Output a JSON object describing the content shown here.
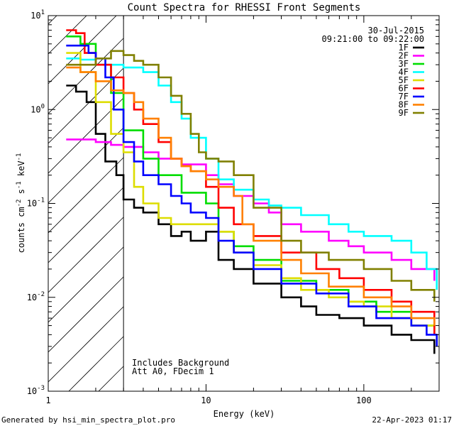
{
  "chart_data": {
    "type": "line",
    "title": "Count Spectra for RHESSI Front Segments",
    "xlabel": "Energy (keV)",
    "ylabel": {
      "base": "counts cm",
      "exp1": "-2",
      "mid1": " s",
      "exp2": "-1",
      "mid2": " keV",
      "exp3": "-1"
    },
    "x_scale": "log",
    "y_scale": "log",
    "xlim": [
      1.0,
      300
    ],
    "ylim": [
      0.001,
      10
    ],
    "x_ticks": [
      {
        "value": 1,
        "label": "1"
      },
      {
        "value": 10,
        "label": "10"
      },
      {
        "value": 100,
        "label": "100"
      }
    ],
    "y_ticks": [
      {
        "value": 0.001,
        "base": "10",
        "exp": "-3"
      },
      {
        "value": 0.01,
        "base": "10",
        "exp": "-2"
      },
      {
        "value": 0.1,
        "base": "10",
        "exp": "-1"
      },
      {
        "value": 1,
        "base": "10",
        "exp": "0"
      },
      {
        "value": 10,
        "base": "10",
        "exp": "1"
      }
    ],
    "date": "30-Jul-2015",
    "time_range": "09:21:00 to 09:22:00",
    "annotations": [
      "Includes Background",
      "Att A0, FDecim 1"
    ],
    "attenuator_edge_kev": 3.0,
    "series": [
      {
        "name": "1F",
        "color": "#000000",
        "points": [
          [
            1.3,
            1.8
          ],
          [
            1.5,
            1.55
          ],
          [
            1.75,
            1.2
          ],
          [
            2.0,
            0.55
          ],
          [
            2.3,
            0.28
          ],
          [
            2.7,
            0.2
          ],
          [
            3.0,
            0.11
          ],
          [
            3.5,
            0.09
          ],
          [
            4.0,
            0.08
          ],
          [
            5.0,
            0.06
          ],
          [
            6.0,
            0.045
          ],
          [
            7.0,
            0.05
          ],
          [
            8.0,
            0.04
          ],
          [
            10.0,
            0.05
          ],
          [
            12.0,
            0.025
          ],
          [
            15.0,
            0.02
          ],
          [
            20.0,
            0.014
          ],
          [
            30.0,
            0.01
          ],
          [
            40.0,
            0.008
          ],
          [
            50.0,
            0.0065
          ],
          [
            70.0,
            0.006
          ],
          [
            100.0,
            0.005
          ],
          [
            150.0,
            0.004
          ],
          [
            200.0,
            0.0035
          ],
          [
            280.0,
            0.0025
          ]
        ]
      },
      {
        "name": "2F",
        "color": "#ff00ff",
        "points": [
          [
            1.3,
            0.48
          ],
          [
            2.0,
            0.45
          ],
          [
            2.5,
            0.42
          ],
          [
            3.0,
            0.4
          ],
          [
            4.0,
            0.35
          ],
          [
            5.0,
            0.3
          ],
          [
            7.0,
            0.26
          ],
          [
            10.0,
            0.2
          ],
          [
            12.0,
            0.16
          ],
          [
            15.0,
            0.12
          ],
          [
            20.0,
            0.1
          ],
          [
            25.0,
            0.08
          ],
          [
            30.0,
            0.06
          ],
          [
            40.0,
            0.05
          ],
          [
            60.0,
            0.04
          ],
          [
            80.0,
            0.035
          ],
          [
            100.0,
            0.03
          ],
          [
            150.0,
            0.025
          ],
          [
            200.0,
            0.02
          ],
          [
            280.0,
            0.015
          ]
        ]
      },
      {
        "name": "3F",
        "color": "#00dd00",
        "points": [
          [
            1.3,
            6.0
          ],
          [
            1.6,
            5.0
          ],
          [
            2.0,
            3.0
          ],
          [
            2.5,
            1.5
          ],
          [
            3.0,
            0.6
          ],
          [
            4.0,
            0.3
          ],
          [
            5.0,
            0.2
          ],
          [
            7.0,
            0.13
          ],
          [
            10.0,
            0.1
          ],
          [
            12.0,
            0.05
          ],
          [
            15.0,
            0.035
          ],
          [
            20.0,
            0.025
          ],
          [
            30.0,
            0.015
          ],
          [
            50.0,
            0.012
          ],
          [
            80.0,
            0.009
          ],
          [
            120.0,
            0.007
          ],
          [
            200.0,
            0.005
          ],
          [
            280.0,
            0.004
          ]
        ]
      },
      {
        "name": "4F",
        "color": "#00ffff",
        "points": [
          [
            1.3,
            3.5
          ],
          [
            1.6,
            3.4
          ],
          [
            2.0,
            3.0
          ],
          [
            3.0,
            2.8
          ],
          [
            4.0,
            2.5
          ],
          [
            5.0,
            1.8
          ],
          [
            6.0,
            1.2
          ],
          [
            7.0,
            0.8
          ],
          [
            8.0,
            0.5
          ],
          [
            10.0,
            0.3
          ],
          [
            12.0,
            0.18
          ],
          [
            15.0,
            0.14
          ],
          [
            20.0,
            0.11
          ],
          [
            25.0,
            0.095
          ],
          [
            30.0,
            0.09
          ],
          [
            40.0,
            0.075
          ],
          [
            60.0,
            0.06
          ],
          [
            80.0,
            0.05
          ],
          [
            100.0,
            0.045
          ],
          [
            150.0,
            0.04
          ],
          [
            200.0,
            0.03
          ],
          [
            250.0,
            0.02
          ],
          [
            290.0,
            0.012
          ]
        ]
      },
      {
        "name": "5F",
        "color": "#dddd00",
        "points": [
          [
            1.3,
            4.0
          ],
          [
            1.6,
            2.5
          ],
          [
            2.0,
            1.2
          ],
          [
            2.5,
            0.55
          ],
          [
            3.0,
            0.35
          ],
          [
            3.5,
            0.15
          ],
          [
            4.0,
            0.1
          ],
          [
            5.0,
            0.07
          ],
          [
            6.0,
            0.06
          ],
          [
            8.0,
            0.06
          ],
          [
            10.0,
            0.06
          ],
          [
            12.0,
            0.05
          ],
          [
            15.0,
            0.03
          ],
          [
            20.0,
            0.022
          ],
          [
            30.0,
            0.016
          ],
          [
            40.0,
            0.012
          ],
          [
            60.0,
            0.01
          ],
          [
            80.0,
            0.009
          ],
          [
            100.0,
            0.008
          ],
          [
            150.0,
            0.006
          ],
          [
            200.0,
            0.005
          ],
          [
            280.0,
            0.004
          ]
        ]
      },
      {
        "name": "6F",
        "color": "#ff0000",
        "points": [
          [
            1.3,
            7.0
          ],
          [
            1.5,
            6.5
          ],
          [
            1.7,
            4.0
          ],
          [
            2.0,
            3.0
          ],
          [
            2.5,
            2.2
          ],
          [
            3.0,
            1.5
          ],
          [
            3.5,
            1.0
          ],
          [
            4.0,
            0.7
          ],
          [
            5.0,
            0.45
          ],
          [
            6.0,
            0.3
          ],
          [
            7.0,
            0.25
          ],
          [
            8.0,
            0.22
          ],
          [
            10.0,
            0.15
          ],
          [
            12.0,
            0.09
          ],
          [
            15.0,
            0.06
          ],
          [
            20.0,
            0.045
          ],
          [
            30.0,
            0.03
          ],
          [
            50.0,
            0.02
          ],
          [
            70.0,
            0.016
          ],
          [
            100.0,
            0.012
          ],
          [
            150.0,
            0.009
          ],
          [
            200.0,
            0.007
          ],
          [
            280.0,
            0.004
          ]
        ]
      },
      {
        "name": "7F",
        "color": "#0000ff",
        "points": [
          [
            1.3,
            4.8
          ],
          [
            1.6,
            4.8
          ],
          [
            1.8,
            4.0
          ],
          [
            2.0,
            3.5
          ],
          [
            2.3,
            2.2
          ],
          [
            2.6,
            1.0
          ],
          [
            3.0,
            0.45
          ],
          [
            3.5,
            0.28
          ],
          [
            4.0,
            0.2
          ],
          [
            5.0,
            0.16
          ],
          [
            6.0,
            0.12
          ],
          [
            7.0,
            0.1
          ],
          [
            8.0,
            0.08
          ],
          [
            10.0,
            0.07
          ],
          [
            12.0,
            0.04
          ],
          [
            15.0,
            0.03
          ],
          [
            20.0,
            0.02
          ],
          [
            30.0,
            0.014
          ],
          [
            50.0,
            0.011
          ],
          [
            80.0,
            0.008
          ],
          [
            120.0,
            0.006
          ],
          [
            200.0,
            0.005
          ],
          [
            250.0,
            0.004
          ],
          [
            290.0,
            0.003
          ]
        ]
      },
      {
        "name": "8F",
        "color": "#ff8000",
        "points": [
          [
            1.3,
            2.8
          ],
          [
            1.6,
            2.5
          ],
          [
            2.0,
            2.0
          ],
          [
            2.5,
            1.6
          ],
          [
            3.0,
            1.5
          ],
          [
            3.5,
            1.2
          ],
          [
            4.0,
            0.8
          ],
          [
            5.0,
            0.5
          ],
          [
            6.0,
            0.3
          ],
          [
            7.0,
            0.25
          ],
          [
            8.0,
            0.22
          ],
          [
            10.0,
            0.18
          ],
          [
            12.0,
            0.15
          ],
          [
            15.0,
            0.12
          ],
          [
            17.0,
            0.06
          ],
          [
            20.0,
            0.04
          ],
          [
            30.0,
            0.025
          ],
          [
            40.0,
            0.018
          ],
          [
            60.0,
            0.013
          ],
          [
            100.0,
            0.01
          ],
          [
            150.0,
            0.008
          ],
          [
            200.0,
            0.006
          ],
          [
            280.0,
            0.005
          ]
        ]
      },
      {
        "name": "9F",
        "color": "#808000",
        "points": [
          [
            1.3,
            3.0
          ],
          [
            1.6,
            3.0
          ],
          [
            2.0,
            3.5
          ],
          [
            2.5,
            4.2
          ],
          [
            3.0,
            3.8
          ],
          [
            3.5,
            3.3
          ],
          [
            4.0,
            3.0
          ],
          [
            5.0,
            2.2
          ],
          [
            6.0,
            1.4
          ],
          [
            7.0,
            0.9
          ],
          [
            8.0,
            0.55
          ],
          [
            9.0,
            0.35
          ],
          [
            10.0,
            0.3
          ],
          [
            12.0,
            0.28
          ],
          [
            15.0,
            0.2
          ],
          [
            20.0,
            0.09
          ],
          [
            30.0,
            0.04
          ],
          [
            40.0,
            0.03
          ],
          [
            60.0,
            0.025
          ],
          [
            100.0,
            0.02
          ],
          [
            150.0,
            0.015
          ],
          [
            200.0,
            0.012
          ],
          [
            280.0,
            0.009
          ]
        ]
      }
    ]
  },
  "footer": {
    "generated_by": "Generated by hsi_min_spectra_plot.pro",
    "timestamp": "22-Apr-2023 01:17"
  }
}
